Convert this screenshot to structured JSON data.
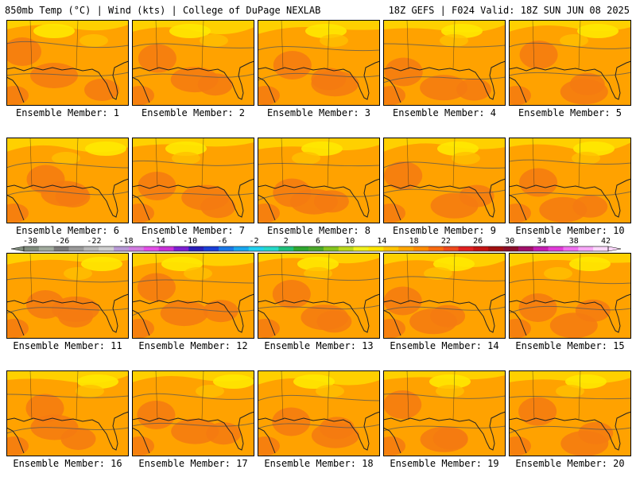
{
  "header": {
    "left": "850mb Temp (°C) | Wind (kts) | College of DuPage NEXLAB",
    "right": "18Z GEFS | F024 Valid: 18Z SUN JUN 08 2025"
  },
  "panels": [
    {
      "label": "Ensemble Member: 1"
    },
    {
      "label": "Ensemble Member: 2"
    },
    {
      "label": "Ensemble Member: 3"
    },
    {
      "label": "Ensemble Member: 4"
    },
    {
      "label": "Ensemble Member: 5"
    },
    {
      "label": "Ensemble Member: 6"
    },
    {
      "label": "Ensemble Member: 7"
    },
    {
      "label": "Ensemble Member: 8"
    },
    {
      "label": "Ensemble Member: 9"
    },
    {
      "label": "Ensemble Member: 10"
    },
    {
      "label": "Ensemble Member: 11"
    },
    {
      "label": "Ensemble Member: 12"
    },
    {
      "label": "Ensemble Member: 13"
    },
    {
      "label": "Ensemble Member: 14"
    },
    {
      "label": "Ensemble Member: 15"
    },
    {
      "label": "Ensemble Member: 16"
    },
    {
      "label": "Ensemble Member: 17"
    },
    {
      "label": "Ensemble Member: 18"
    },
    {
      "label": "Ensemble Member: 19"
    },
    {
      "label": "Ensemble Member: 20"
    }
  ],
  "colorbar": {
    "tick_labels": [
      "-30",
      "-26",
      "-22",
      "-18",
      "-14",
      "-10",
      "-6",
      "-2",
      "2",
      "6",
      "10",
      "14",
      "18",
      "22",
      "26",
      "30",
      "34",
      "38",
      "42"
    ],
    "colors": [
      "#7f8c7d",
      "#a0aa9d",
      "#7a7a7a",
      "#9a9a9a",
      "#b8b8b8",
      "#cfcfcf",
      "#b89ad6",
      "#d27ee0",
      "#e24fe6",
      "#c832d6",
      "#7d1fd0",
      "#2a1fb8",
      "#1a3ed6",
      "#1a78e6",
      "#1aa6ee",
      "#22d0ee",
      "#27d8c8",
      "#1fbf7a",
      "#2fa62f",
      "#4ca82a",
      "#84c41f",
      "#bcd81c",
      "#f0f01e",
      "#ffe400",
      "#ffc400",
      "#ffa500",
      "#ff8c00",
      "#f86a10",
      "#ee4a1c",
      "#e02020",
      "#c41414",
      "#a01010",
      "#8b0e2a",
      "#a0106a",
      "#c41eb0",
      "#e03cd8",
      "#f070f0",
      "#f8a8f8",
      "#fcd8fc"
    ]
  }
}
